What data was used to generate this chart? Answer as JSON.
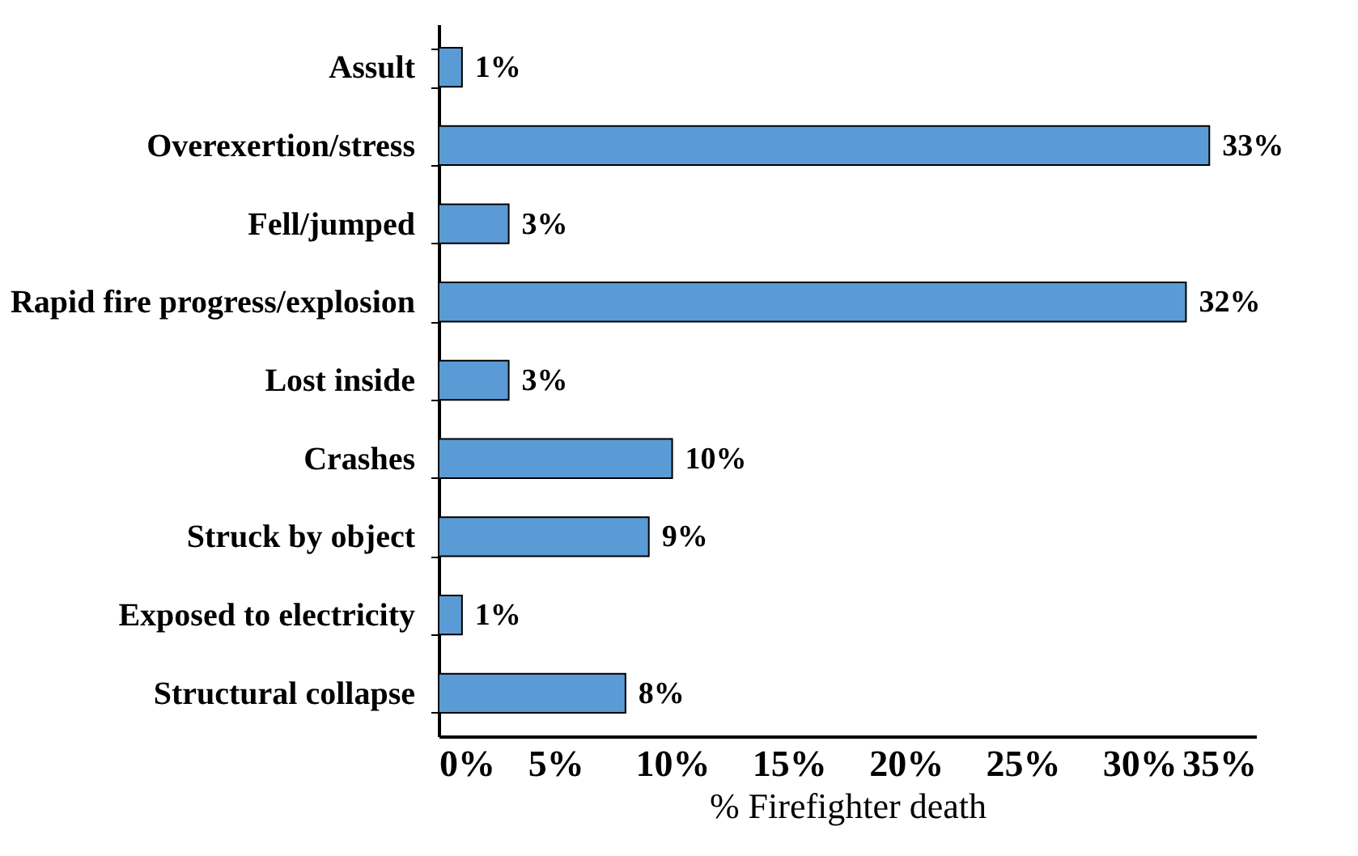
{
  "chart_data": {
    "type": "bar",
    "orientation": "horizontal",
    "xlabel": "% Firefighter death",
    "categories": [
      "Assult",
      "Overexertion/stress",
      "Fell/jumped",
      "Rapid fire progress/explosion",
      "Lost inside",
      "Crashes",
      "Struck by object",
      "Exposed to electricity",
      "Structural collapse"
    ],
    "values": [
      1,
      33,
      3,
      32,
      3,
      10,
      9,
      1,
      8
    ],
    "value_labels": [
      "1%",
      "33%",
      "3%",
      "32%",
      "3%",
      "10%",
      "9%",
      "1%",
      "8%"
    ],
    "color": "#5b9bd5",
    "xlim": [
      0,
      35
    ],
    "xticks": [
      {
        "value": 0,
        "label": "0%"
      },
      {
        "value": 5,
        "label": "5%"
      },
      {
        "value": 10,
        "label": "10%"
      },
      {
        "value": 15,
        "label": "15%"
      },
      {
        "value": 20,
        "label": "20%"
      },
      {
        "value": 25,
        "label": "25%"
      },
      {
        "value": 30,
        "label": "30%"
      },
      {
        "value": 35,
        "label": "35%"
      }
    ],
    "grid": false
  }
}
